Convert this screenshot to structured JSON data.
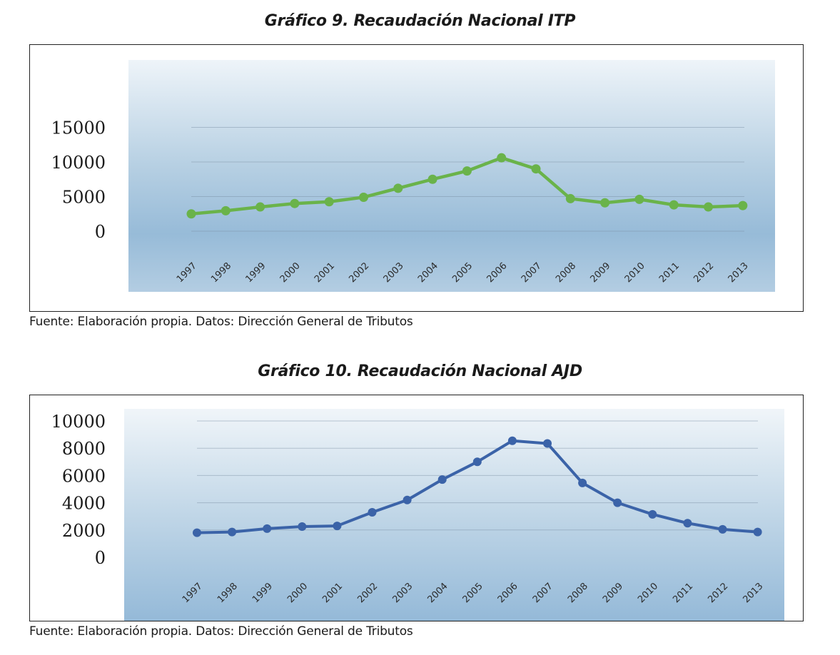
{
  "chart9": {
    "caption": "Gráfico 9. Recaudación Nacional ITP",
    "source": "Fuente: Elaboración propia. Datos: Dirección General de Tributos"
  },
  "chart10": {
    "caption": "Gráfico 10. Recaudación Nacional AJD",
    "source": "Fuente: Elaboración propia. Datos: Dirección General de Tributos"
  },
  "chart_data": [
    {
      "type": "line",
      "title": "Gráfico 9. Recaudación Nacional ITP",
      "xlabel": "",
      "ylabel": "",
      "categories": [
        "1997",
        "1998",
        "1999",
        "2000",
        "2001",
        "2002",
        "2003",
        "2004",
        "2005",
        "2006",
        "2007",
        "2008",
        "2009",
        "2010",
        "2011",
        "2012",
        "2013"
      ],
      "series": [
        {
          "values": [
            2500,
            2950,
            3500,
            4000,
            4250,
            4900,
            6200,
            7500,
            8700,
            10600,
            9000,
            4700,
            4100,
            4600,
            3800,
            3500,
            3700
          ]
        }
      ],
      "yticks": [
        0,
        5000,
        10000,
        15000
      ],
      "ylim": [
        0,
        15000
      ],
      "grid": true,
      "color": "#6ab34a"
    },
    {
      "type": "line",
      "title": "Gráfico 10. Recaudación Nacional AJD",
      "xlabel": "",
      "ylabel": "",
      "categories": [
        "1997",
        "1998",
        "1999",
        "2000",
        "2001",
        "2002",
        "2003",
        "2004",
        "2005",
        "2006",
        "2007",
        "2008",
        "2009",
        "2010",
        "2011",
        "2012",
        "2013"
      ],
      "series": [
        {
          "values": [
            1800,
            1850,
            2100,
            2250,
            2300,
            3300,
            4200,
            5700,
            7000,
            8550,
            8350,
            5450,
            4000,
            3150,
            2500,
            2050,
            1850
          ]
        }
      ],
      "yticks": [
        0,
        2000,
        4000,
        6000,
        8000,
        10000
      ],
      "ylim": [
        0,
        10000
      ],
      "grid": true,
      "color": "#3b63a8"
    }
  ]
}
